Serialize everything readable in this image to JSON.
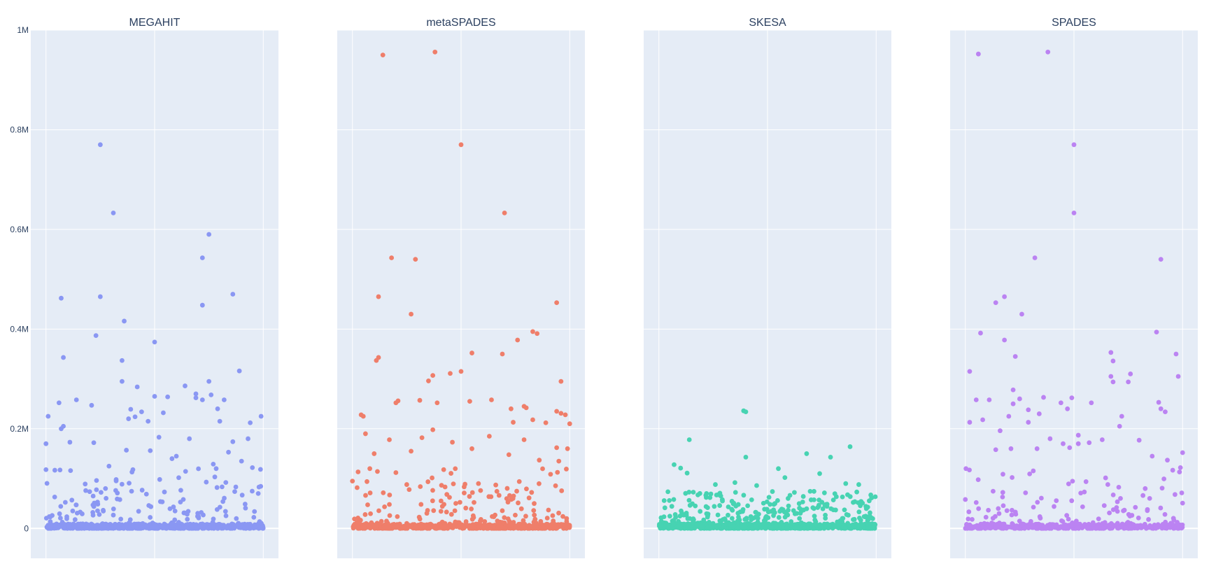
{
  "chart_data": {
    "type": "scatter",
    "layout": "4 side-by-side panels, shared y-axis",
    "grid": true,
    "legend": "none",
    "background_color": "#e5ecf6",
    "gridline_color": "#ffffff",
    "text_color": "#2a3f5f",
    "y_range": [
      -60000,
      1000000
    ],
    "x_range": [
      -0.07,
      1.07
    ],
    "y_ticks": [
      {
        "value": 0,
        "label": "0"
      },
      {
        "value": 200000,
        "label": "0.2M"
      },
      {
        "value": 400000,
        "label": "0.4M"
      },
      {
        "value": 600000,
        "label": "0.6M"
      },
      {
        "value": 800000,
        "label": "0.8M"
      },
      {
        "value": 1000000,
        "label": "1M"
      }
    ],
    "x_grid_positions": [
      0,
      0.5,
      1
    ],
    "panels": [
      {
        "title": "MEGAHIT",
        "color": "#8a97f3",
        "highlights": [
          [
            0.25,
            770000
          ],
          [
            0.31,
            633000
          ],
          [
            0.72,
            543000
          ],
          [
            0.75,
            590000
          ],
          [
            0.07,
            462000
          ],
          [
            0.25,
            465000
          ],
          [
            0.36,
            416000
          ],
          [
            0.86,
            470000
          ],
          [
            0.72,
            448000
          ],
          [
            0.23,
            387000
          ],
          [
            0.5,
            374000
          ],
          [
            0.08,
            343000
          ],
          [
            0.35,
            337000
          ],
          [
            0.35,
            295000
          ],
          [
            0.42,
            284000
          ],
          [
            0.64,
            286000
          ],
          [
            0.75,
            295000
          ],
          [
            0.89,
            316000
          ],
          [
            0.79,
            240000
          ],
          [
            0.69,
            270000
          ],
          [
            0.06,
            252000
          ],
          [
            0.14,
            258000
          ],
          [
            0.21,
            247000
          ],
          [
            0.5,
            265000
          ],
          [
            0.56,
            264000
          ],
          [
            0.39,
            239000
          ],
          [
            0.41,
            224000
          ],
          [
            0.47,
            215000
          ],
          [
            0.54,
            232000
          ],
          [
            0.72,
            258000
          ],
          [
            0.76,
            268000
          ],
          [
            0.82,
            258000
          ],
          [
            0.8,
            215000
          ],
          [
            0.94,
            212000
          ],
          [
            0.99,
            225000
          ],
          [
            0.01,
            225000
          ],
          [
            0.07,
            200000
          ],
          [
            0.08,
            205000
          ],
          [
            0.11,
            173000
          ],
          [
            0.22,
            172000
          ],
          [
            0.38,
            220000
          ],
          [
            0.44,
            234000
          ],
          [
            0.52,
            183000
          ],
          [
            0.58,
            140000
          ],
          [
            0.66,
            180000
          ],
          [
            0.69,
            262000
          ],
          [
            0.86,
            174000
          ],
          [
            0.93,
            180000
          ],
          [
            0.0,
            170000
          ],
          [
            0.0,
            118000
          ],
          [
            0.04,
            63000
          ],
          [
            0.29,
            125000
          ],
          [
            0.37,
            157000
          ],
          [
            0.4,
            118000
          ],
          [
            0.48,
            156000
          ],
          [
            0.6,
            145000
          ],
          [
            0.77,
            129000
          ],
          [
            0.84,
            153000
          ],
          [
            0.9,
            135000
          ],
          [
            0.95,
            122000
          ]
        ],
        "dense": {
          "count": 700,
          "peak": 120000,
          "power": 4.2
        }
      },
      {
        "title": "metaSPADES",
        "color": "#ef7e6a",
        "highlights": [
          [
            0.14,
            950000
          ],
          [
            0.38,
            956000
          ],
          [
            0.5,
            770000
          ],
          [
            0.7,
            633000
          ],
          [
            0.18,
            543000
          ],
          [
            0.29,
            540000
          ],
          [
            0.12,
            465000
          ],
          [
            0.27,
            430000
          ],
          [
            0.94,
            453000
          ],
          [
            0.83,
            395000
          ],
          [
            0.85,
            391000
          ],
          [
            0.76,
            378000
          ],
          [
            0.11,
            337000
          ],
          [
            0.12,
            343000
          ],
          [
            0.55,
            352000
          ],
          [
            0.69,
            350000
          ],
          [
            0.37,
            307000
          ],
          [
            0.45,
            311000
          ],
          [
            0.5,
            315000
          ],
          [
            0.35,
            296000
          ],
          [
            0.96,
            295000
          ],
          [
            0.2,
            252000
          ],
          [
            0.21,
            256000
          ],
          [
            0.31,
            257000
          ],
          [
            0.39,
            252000
          ],
          [
            0.54,
            255000
          ],
          [
            0.64,
            258000
          ],
          [
            0.79,
            245000
          ],
          [
            0.8,
            242000
          ],
          [
            0.94,
            235000
          ],
          [
            0.96,
            231000
          ],
          [
            0.98,
            228000
          ],
          [
            0.04,
            228000
          ],
          [
            0.05,
            225000
          ],
          [
            0.73,
            240000
          ],
          [
            0.83,
            218000
          ],
          [
            0.89,
            212000
          ],
          [
            1.0,
            210000
          ],
          [
            0.74,
            213000
          ],
          [
            0.06,
            190000
          ],
          [
            0.17,
            178000
          ],
          [
            0.37,
            198000
          ],
          [
            0.55,
            160000
          ],
          [
            0.63,
            185000
          ],
          [
            0.79,
            178000
          ],
          [
            0.94,
            162000
          ],
          [
            0.99,
            160000
          ],
          [
            0.1,
            150000
          ],
          [
            0.27,
            155000
          ],
          [
            0.32,
            182000
          ],
          [
            0.46,
            173000
          ],
          [
            0.72,
            148000
          ],
          [
            0.86,
            137000
          ],
          [
            0.95,
            135000
          ],
          [
            0.0,
            95000
          ],
          [
            0.08,
            120000
          ],
          [
            0.2,
            112000
          ],
          [
            0.25,
            88000
          ],
          [
            0.42,
            118000
          ],
          [
            0.58,
            90000
          ]
        ],
        "dense": {
          "count": 650,
          "peak": 120000,
          "power": 4.0
        }
      },
      {
        "title": "SKESA",
        "color": "#47d3b2",
        "highlights": [
          [
            0.39,
            236000
          ],
          [
            0.4,
            234000
          ],
          [
            0.14,
            178000
          ],
          [
            0.4,
            143000
          ],
          [
            0.68,
            150000
          ],
          [
            0.79,
            143000
          ],
          [
            0.88,
            164000
          ],
          [
            0.74,
            110000
          ],
          [
            0.55,
            120000
          ],
          [
            0.07,
            128000
          ],
          [
            0.1,
            121000
          ],
          [
            0.13,
            111000
          ],
          [
            0.58,
            102000
          ],
          [
            0.92,
            88000
          ],
          [
            0.86,
            90000
          ],
          [
            0.26,
            88000
          ],
          [
            0.35,
            92000
          ],
          [
            0.45,
            86000
          ]
        ],
        "dense": {
          "count": 1000,
          "peak": 75000,
          "power": 2.6
        }
      },
      {
        "title": "SPADES",
        "color": "#bb83f2",
        "highlights": [
          [
            0.06,
            952000
          ],
          [
            0.38,
            956000
          ],
          [
            0.5,
            770000
          ],
          [
            0.5,
            633000
          ],
          [
            0.32,
            543000
          ],
          [
            0.9,
            540000
          ],
          [
            0.18,
            465000
          ],
          [
            0.14,
            453000
          ],
          [
            0.07,
            392000
          ],
          [
            0.26,
            430000
          ],
          [
            0.88,
            394000
          ],
          [
            0.18,
            378000
          ],
          [
            0.67,
            353000
          ],
          [
            0.97,
            350000
          ],
          [
            0.23,
            345000
          ],
          [
            0.68,
            336000
          ],
          [
            0.02,
            315000
          ],
          [
            0.67,
            305000
          ],
          [
            0.76,
            310000
          ],
          [
            0.98,
            305000
          ],
          [
            0.68,
            294000
          ],
          [
            0.75,
            294000
          ],
          [
            0.49,
            262000
          ],
          [
            0.44,
            252000
          ],
          [
            0.36,
            263000
          ],
          [
            0.89,
            253000
          ],
          [
            0.58,
            252000
          ],
          [
            0.22,
            278000
          ],
          [
            0.25,
            260000
          ],
          [
            0.05,
            258000
          ],
          [
            0.11,
            258000
          ],
          [
            0.22,
            250000
          ],
          [
            0.9,
            240000
          ],
          [
            0.92,
            234000
          ],
          [
            0.29,
            238000
          ],
          [
            0.34,
            230000
          ],
          [
            0.72,
            225000
          ],
          [
            0.47,
            240000
          ],
          [
            0.02,
            213000
          ],
          [
            0.08,
            218000
          ],
          [
            0.2,
            225000
          ],
          [
            0.29,
            213000
          ],
          [
            0.71,
            205000
          ],
          [
            0.16,
            196000
          ],
          [
            0.52,
            187000
          ],
          [
            0.63,
            178000
          ],
          [
            0.48,
            162000
          ],
          [
            0.52,
            170000
          ],
          [
            0.57,
            172000
          ],
          [
            0.39,
            180000
          ],
          [
            0.14,
            158000
          ],
          [
            0.21,
            160000
          ],
          [
            0.8,
            177000
          ],
          [
            1.0,
            152000
          ],
          [
            0.93,
            137000
          ],
          [
            0.99,
            122000
          ],
          [
            0.33,
            160000
          ],
          [
            0.45,
            170000
          ],
          [
            0.86,
            145000
          ],
          [
            0.0,
            58000
          ]
        ],
        "dense": {
          "count": 550,
          "peak": 120000,
          "power": 4.0
        }
      }
    ]
  }
}
